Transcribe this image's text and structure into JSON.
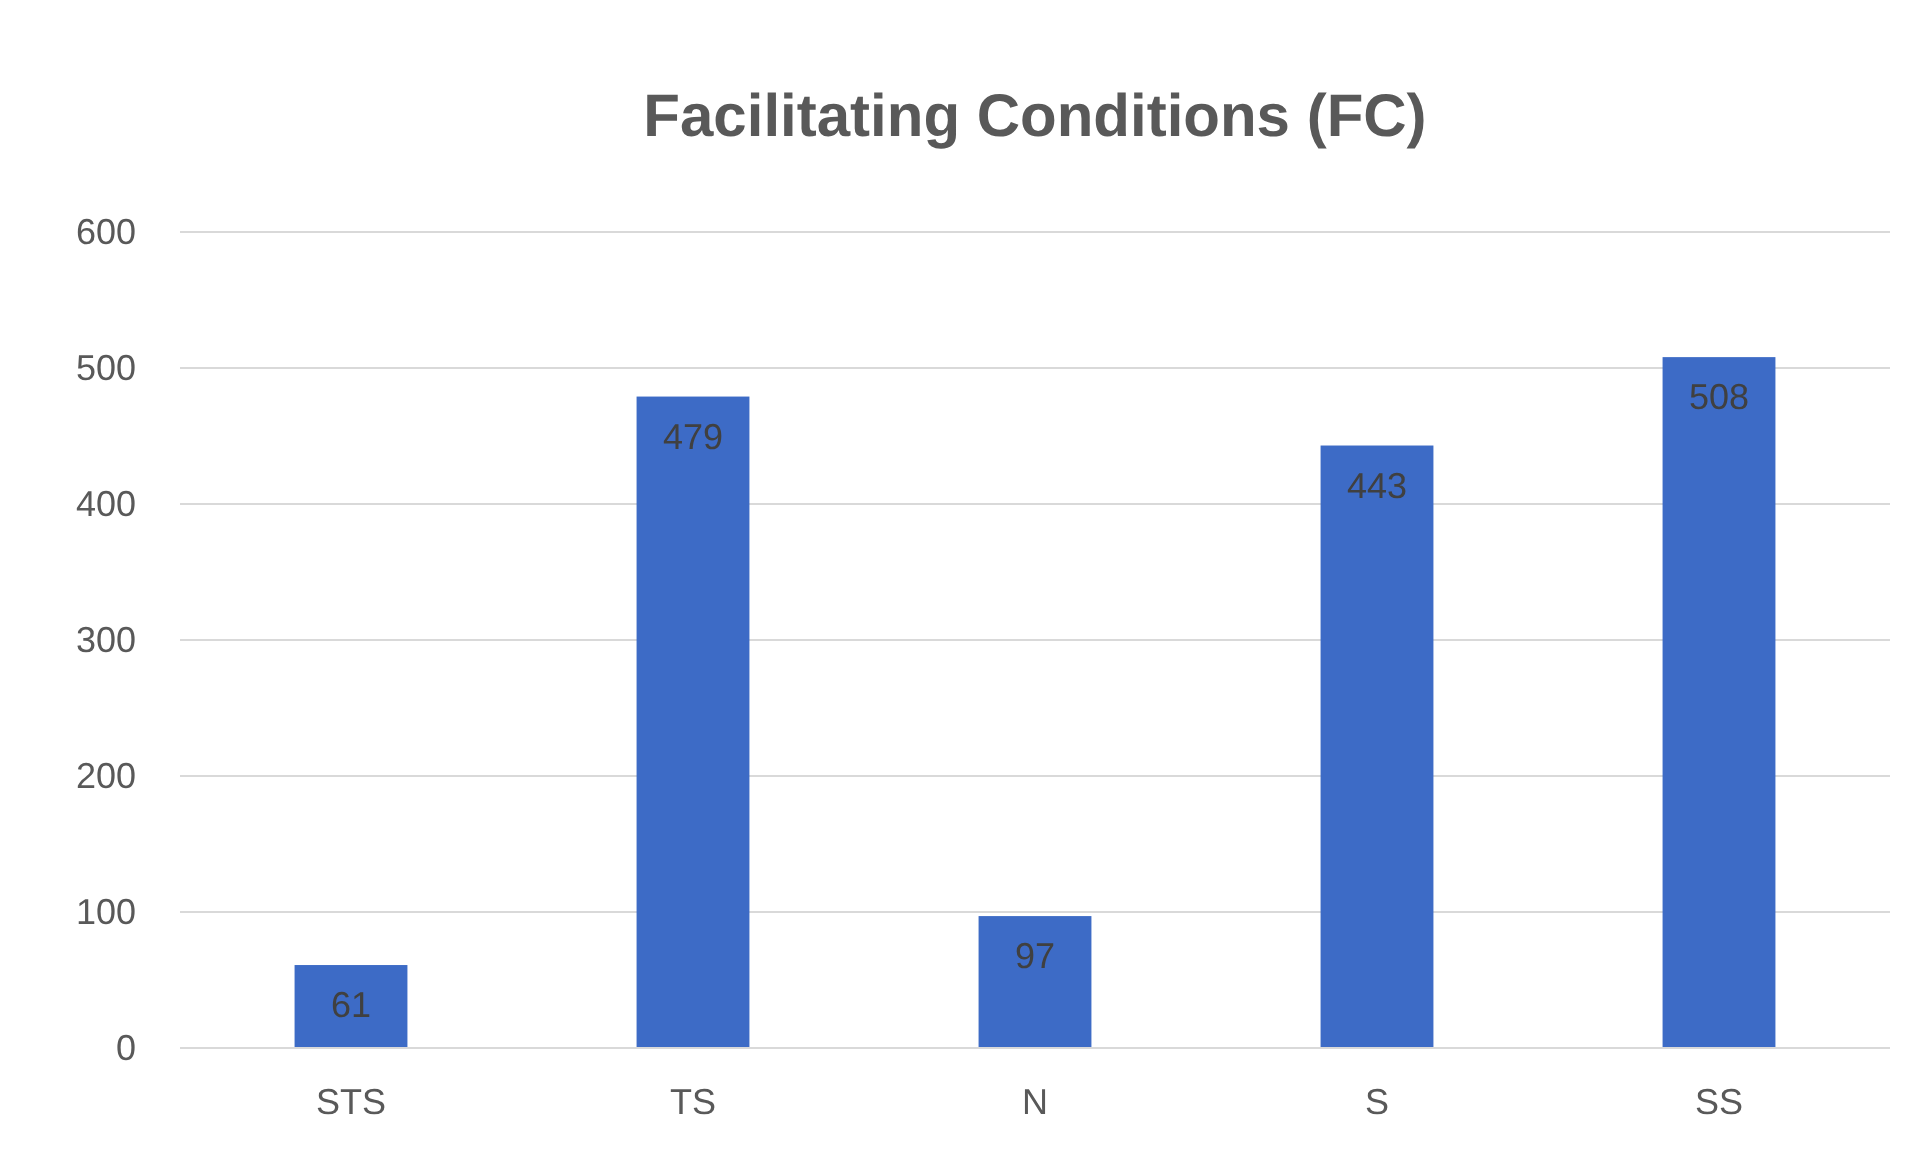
{
  "chart_data": {
    "type": "bar",
    "title": "Facilitating Conditions (FC)",
    "categories": [
      "STS",
      "TS",
      "N",
      "S",
      "SS"
    ],
    "values": [
      61,
      479,
      97,
      443,
      508
    ],
    "color": "#3d6bc6",
    "ylim": [
      0,
      600
    ],
    "yticks": [
      0,
      100,
      200,
      300,
      400,
      500,
      600
    ],
    "grid": "y",
    "data_labels": true
  }
}
